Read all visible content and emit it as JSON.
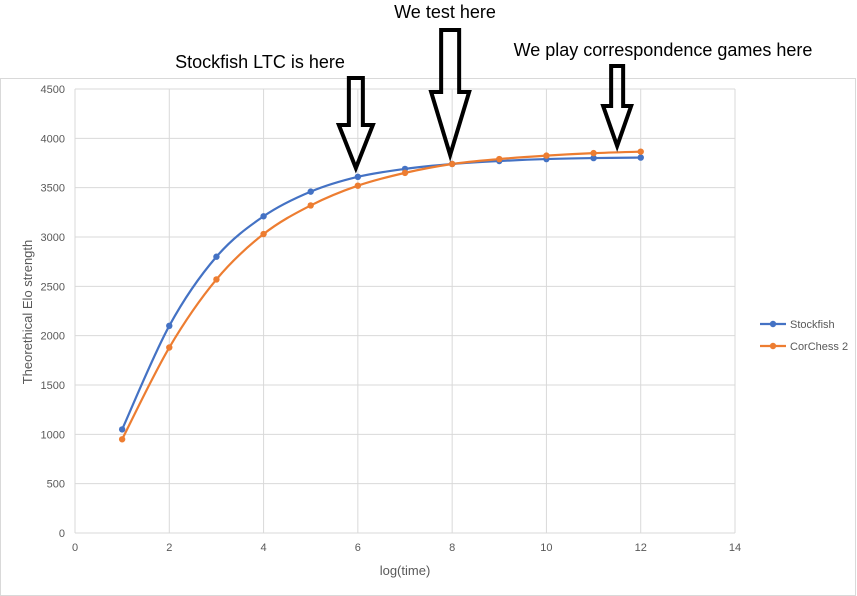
{
  "chart_data": {
    "type": "line",
    "xlabel": "log(time)",
    "ylabel": "Theorethical Elo strength",
    "xlim": [
      0,
      14
    ],
    "ylim": [
      0,
      4500
    ],
    "x_ticks": [
      "0",
      "2",
      "4",
      "6",
      "8",
      "10",
      "12",
      "14"
    ],
    "y_ticks": [
      "0",
      "500",
      "1000",
      "1500",
      "2000",
      "2500",
      "3000",
      "3500",
      "4000",
      "4500"
    ],
    "grid": true,
    "legend_position": "right",
    "series": [
      {
        "name": "Stockfish",
        "color": "#4472C4",
        "x": [
          1,
          2,
          3,
          4,
          5,
          6,
          7,
          8,
          9,
          10,
          11,
          12
        ],
        "values": [
          1050,
          2100,
          2800,
          3210,
          3460,
          3610,
          3690,
          3740,
          3770,
          3790,
          3800,
          3805
        ]
      },
      {
        "name": "CorChess 2",
        "color": "#ED7D31",
        "x": [
          1,
          2,
          3,
          4,
          5,
          6,
          7,
          8,
          9,
          10,
          11,
          12
        ],
        "values": [
          950,
          1880,
          2570,
          3030,
          3320,
          3520,
          3650,
          3740,
          3790,
          3825,
          3850,
          3865
        ]
      }
    ],
    "annotations": [
      {
        "text": "Stockfish LTC is here",
        "x": 6
      },
      {
        "text": "We test here",
        "x": 8
      },
      {
        "text": "We play correspondence games here",
        "x": 11.5
      }
    ]
  }
}
